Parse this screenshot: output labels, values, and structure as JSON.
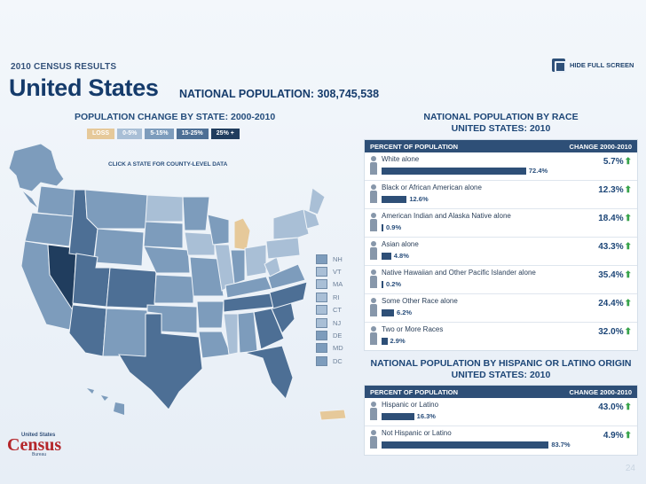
{
  "header": {
    "kicker": "2010 CENSUS RESULTS",
    "title": "United States",
    "national_population": "NATIONAL POPULATION: 308,745,538",
    "hide_full_screen": "HIDE FULL SCREEN"
  },
  "map": {
    "title": "POPULATION CHANGE BY STATE: 2000-2010",
    "legend": [
      {
        "label": "LOSS",
        "color": "#e6c99a"
      },
      {
        "label": "0-5%",
        "color": "#a9bfd6"
      },
      {
        "label": "5-15%",
        "color": "#7d9cbc"
      },
      {
        "label": "15-25%",
        "color": "#4d6f95"
      },
      {
        "label": "25% +",
        "color": "#203d5e"
      }
    ],
    "hint": "CLICK A STATE FOR COUNTY-LEVEL DATA",
    "small_states": [
      {
        "abbr": "NH",
        "color": "#7d9cbc"
      },
      {
        "abbr": "VT",
        "color": "#a9bfd6"
      },
      {
        "abbr": "MA",
        "color": "#a9bfd6"
      },
      {
        "abbr": "RI",
        "color": "#a9bfd6"
      },
      {
        "abbr": "CT",
        "color": "#a9bfd6"
      },
      {
        "abbr": "NJ",
        "color": "#a9bfd6"
      },
      {
        "abbr": "DE",
        "color": "#7d9cbc"
      },
      {
        "abbr": "MD",
        "color": "#7d9cbc"
      },
      {
        "abbr": "DC",
        "color": "#7d9cbc"
      }
    ]
  },
  "race": {
    "title_line1": "NATIONAL POPULATION BY RACE",
    "title_line2": "UNITED STATES: 2010",
    "col_left": "PERCENT OF POPULATION",
    "col_right": "CHANGE 2000-2010",
    "rows": [
      {
        "label": "White alone",
        "percent": 72.4,
        "percent_text": "72.4%",
        "change": "5.7%"
      },
      {
        "label": "Black or African American alone",
        "percent": 12.6,
        "percent_text": "12.6%",
        "change": "12.3%"
      },
      {
        "label": "American Indian and Alaska Native alone",
        "percent": 0.9,
        "percent_text": "0.9%",
        "change": "18.4%"
      },
      {
        "label": "Asian alone",
        "percent": 4.8,
        "percent_text": "4.8%",
        "change": "43.3%"
      },
      {
        "label": "Native Hawaiian and Other Pacific Islander alone",
        "percent": 0.2,
        "percent_text": "0.2%",
        "change": "35.4%"
      },
      {
        "label": "Some Other Race alone",
        "percent": 6.2,
        "percent_text": "6.2%",
        "change": "24.4%"
      },
      {
        "label": "Two or More Races",
        "percent": 2.9,
        "percent_text": "2.9%",
        "change": "32.0%"
      }
    ]
  },
  "hispanic": {
    "title_line1": "NATIONAL POPULATION BY HISPANIC OR LATINO ORIGIN",
    "title_line2": "UNITED STATES: 2010",
    "col_left": "PERCENT OF POPULATION",
    "col_right": "CHANGE 2000-2010",
    "rows": [
      {
        "label": "Hispanic or Latino",
        "percent": 16.3,
        "percent_text": "16.3%",
        "change": "43.0%"
      },
      {
        "label": "Not Hispanic or Latino",
        "percent": 83.7,
        "percent_text": "83.7%",
        "change": "4.9%"
      }
    ]
  },
  "logo": {
    "top": "United States",
    "main": "Census",
    "bottom": "Bureau"
  },
  "page_number": "24",
  "icons": {
    "fullscreen": "fullscreen-icon",
    "person": "person-icon",
    "increase": "up-arrow-icon"
  }
}
